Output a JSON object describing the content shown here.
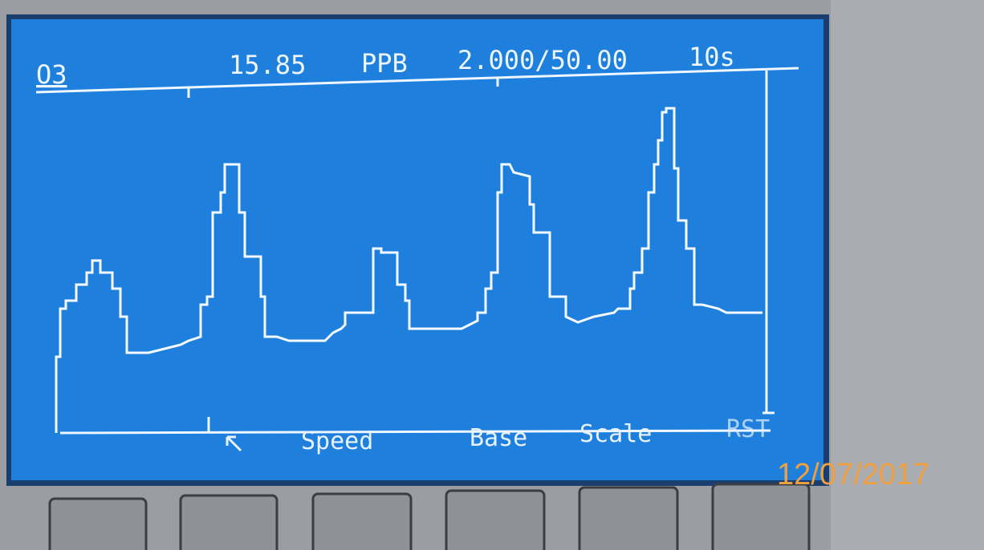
{
  "header": {
    "gas": "O3",
    "reading": "15.85",
    "unit": "PPB",
    "scale": "2.000/50.00",
    "interval": "10s"
  },
  "softkeys": [
    "Speed",
    "Base",
    "Scale",
    "RST"
  ],
  "timestamp": "12/07/2017"
}
